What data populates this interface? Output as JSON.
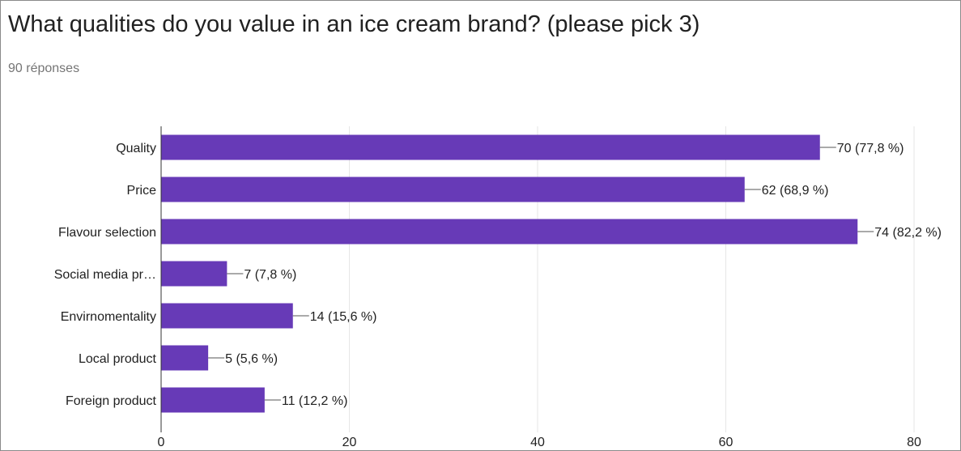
{
  "question": "What qualities do you value in an ice cream brand? (please pick 3)",
  "responses": "90 réponses",
  "colors": {
    "bar": "#673ab7",
    "grid": "#e6e6e6",
    "axis": "#333333",
    "text": "#212121"
  },
  "chart_data": {
    "type": "bar",
    "orientation": "horizontal",
    "title": "",
    "xlabel": "",
    "ylabel": "",
    "categories": [
      "Quality",
      "Price",
      "Flavour selection",
      "Social media pr…",
      "Envirnomentality",
      "Local product",
      "Foreign product"
    ],
    "values": [
      70,
      62,
      74,
      7,
      14,
      5,
      11
    ],
    "labels": [
      "70 (77,8 %)",
      "62 (68,9 %)",
      "74 (82,2 %)",
      "7 (7,8 %)",
      "14 (15,6 %)",
      "5 (5,6 %)",
      "11 (12,2 %)"
    ],
    "xlim": [
      0,
      80
    ],
    "xticks": [
      0,
      20,
      40,
      60,
      80
    ],
    "grid": true,
    "legend": "none"
  }
}
